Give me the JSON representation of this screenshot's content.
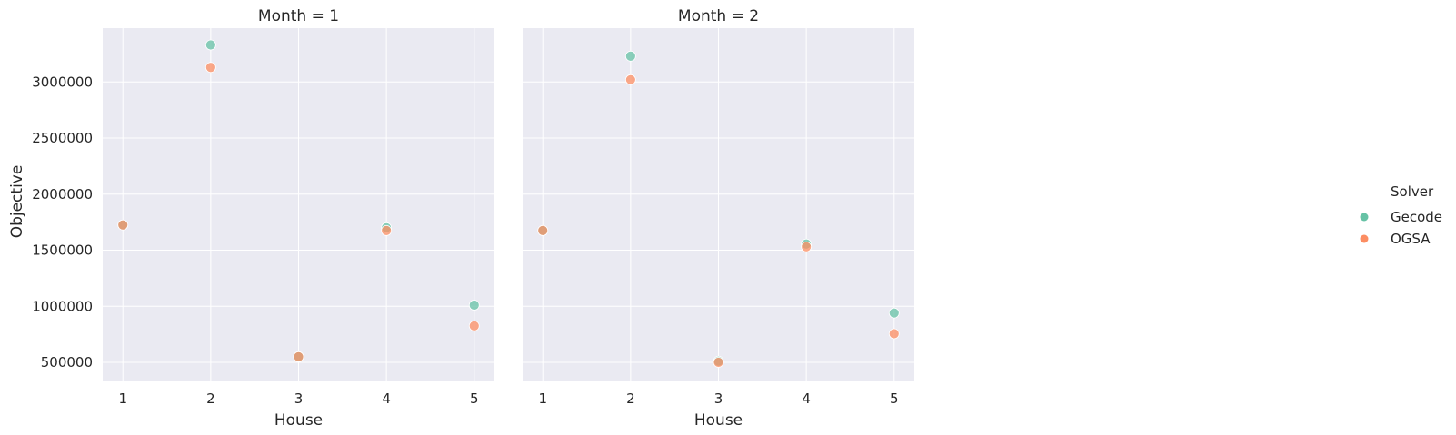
{
  "chart_data": {
    "type": "scatter",
    "facet_variable": "Month",
    "panels": [
      {
        "title": "Month = 1",
        "x": [
          1,
          2,
          3,
          4,
          5
        ],
        "series": [
          {
            "name": "Gecode",
            "values": [
              1725000,
              3330000,
              550000,
              1700000,
              1010000
            ]
          },
          {
            "name": "OGSA",
            "values": [
              1725000,
              3130000,
              550000,
              1675000,
              825000
            ]
          }
        ]
      },
      {
        "title": "Month = 2",
        "x": [
          1,
          2,
          3,
          4,
          5
        ],
        "series": [
          {
            "name": "Gecode",
            "values": [
              1675000,
              3230000,
              510000,
              1555000,
              940000
            ]
          },
          {
            "name": "OGSA",
            "values": [
              1675000,
              3020000,
              500000,
              1530000,
              755000
            ]
          }
        ]
      }
    ],
    "xlabel": "House",
    "ylabel": "Objective",
    "xticks": [
      "1",
      "2",
      "3",
      "4",
      "5"
    ],
    "yticks": [
      "500000",
      "1000000",
      "1500000",
      "2000000",
      "2500000",
      "3000000"
    ],
    "xlim": [
      0.77,
      5.23
    ],
    "ylim": [
      330000,
      3480000
    ],
    "grid": true,
    "legend": {
      "title": "Solver",
      "placement": "right",
      "entries": [
        "Gecode",
        "OGSA"
      ]
    },
    "colors": {
      "Gecode": "#66c2a5",
      "OGSA": "#fc8d62",
      "panel_background": "#eaeaf2",
      "grid": "#ffffff"
    }
  }
}
